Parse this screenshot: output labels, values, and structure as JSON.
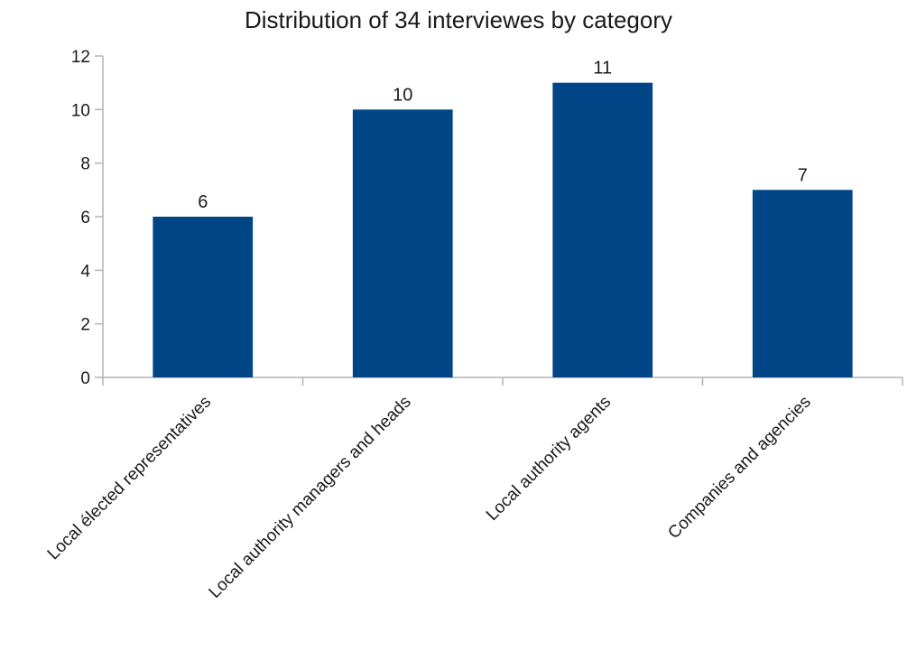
{
  "chart_data": {
    "type": "bar",
    "title": "Distribution of 34 interviewes by category",
    "xlabel": "",
    "ylabel": "",
    "categories": [
      "Local élected representatives",
      "Local authority managers and heads",
      "Local authority agents",
      "Companies and agencies"
    ],
    "values": [
      6,
      10,
      11,
      7
    ],
    "data_labels": [
      "6",
      "10",
      "11",
      "7"
    ],
    "ylim": [
      0,
      12
    ],
    "yticks": [
      0,
      2,
      4,
      6,
      8,
      10,
      12
    ],
    "ytick_labels": [
      "0",
      "2",
      "4",
      "6",
      "8",
      "10",
      "12"
    ],
    "grid": false,
    "legend": "none",
    "bar_color": "#004586",
    "axis_color": "#b3b3b3"
  }
}
